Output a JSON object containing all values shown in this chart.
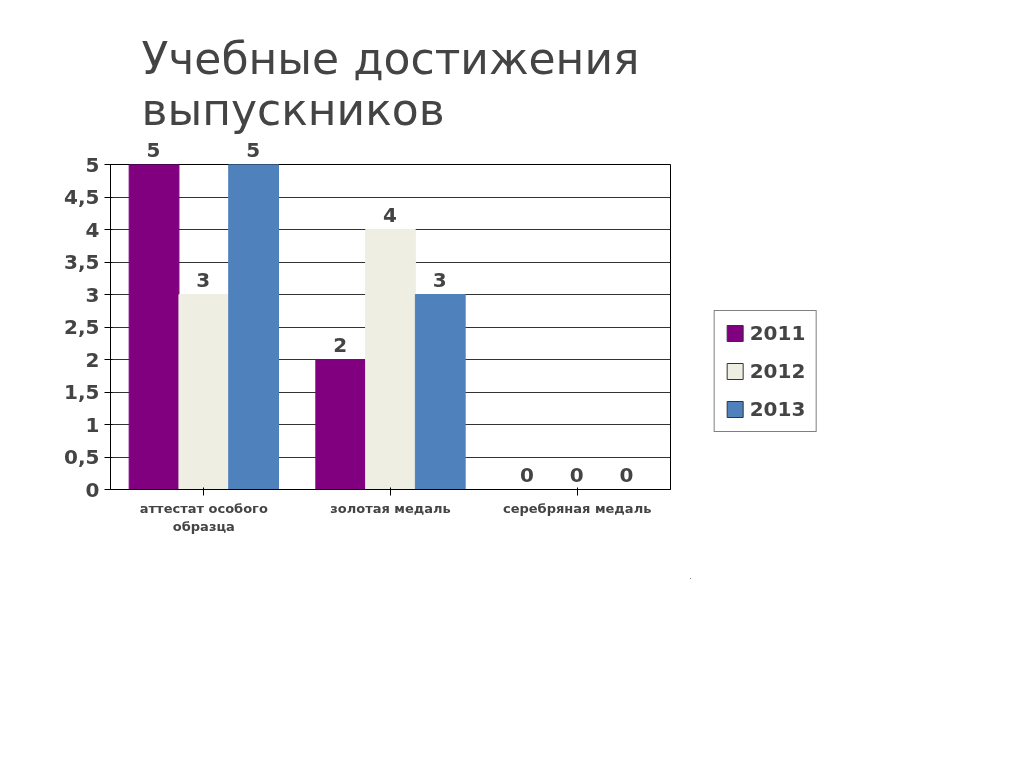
{
  "chart_data": {
    "type": "bar",
    "title": "Учебные достижения выпускников",
    "categories": [
      "аттестат особого образца",
      "золотая медаль",
      "серебряная медаль"
    ],
    "series": [
      {
        "name": "2011",
        "color": "#800080",
        "values": [
          5,
          2,
          0
        ]
      },
      {
        "name": "2012",
        "color": "#eeeee2",
        "values": [
          3,
          4,
          0
        ]
      },
      {
        "name": "2013",
        "color": "#4f81bd",
        "values": [
          5,
          3,
          0
        ]
      }
    ],
    "ylim": [
      0,
      5
    ],
    "yticks": [
      0,
      {
        "value": 0.5,
        "label": "0,5"
      },
      1,
      {
        "value": 1.5,
        "label": "1,5"
      },
      2,
      {
        "value": 2.5,
        "label": "2,5"
      },
      3,
      {
        "value": 3.5,
        "label": "3,5"
      },
      4,
      {
        "value": 4.5,
        "label": "4,5"
      },
      5
    ],
    "grid": "y",
    "legend": "right",
    "data_labels": true
  }
}
